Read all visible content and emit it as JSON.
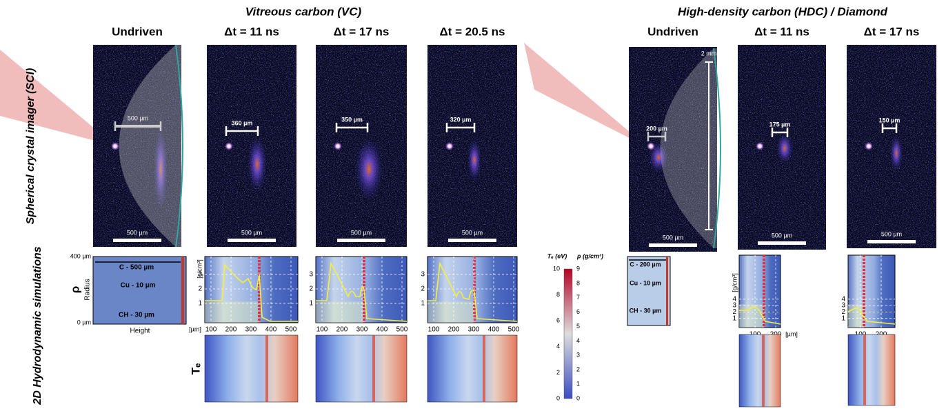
{
  "groups": [
    "Vitreous carbon (VC)",
    "High-density carbon (HDC) / Diamond"
  ],
  "columns": [
    "Undriven",
    "Δt = 11 ns",
    "Δt = 17 ns",
    "Δt = 20.5 ns",
    "Undriven",
    "Δt = 11 ns",
    "Δt = 17 ns"
  ],
  "rows": [
    "Spherical crystal imager (SCI)",
    "2D Hydrodynamic simulations"
  ],
  "sci": {
    "spans": [
      "500 µm",
      "360 µm",
      "350 µm",
      "320 µm",
      "200 µm",
      "175 µm",
      "150 µm"
    ],
    "scale_bars": [
      "500 µm",
      "500 µm",
      "500 µm",
      "500 µm",
      "500 µm",
      "500 µm",
      "500 µm"
    ],
    "height": "2 mm"
  },
  "targets": [
    {
      "radius_ticks": [
        "400 µm",
        "0 µm"
      ],
      "radius_label": "Radius",
      "height_label": "Height",
      "quantity": "ρ",
      "layers": [
        "C - 500 µm",
        "Cu - 10 µm",
        "CH - 30 µm"
      ]
    },
    {
      "layers": [
        "C - 200 µm",
        "Cu - 10 µm",
        "CH - 30 µm"
      ]
    }
  ],
  "lineouts": {
    "density_unit": "[g/cm³]",
    "x_unit": "[µm]",
    "vc_yticks": [
      1,
      2,
      3
    ],
    "vc_xticks": [
      100,
      200,
      300,
      400,
      500
    ],
    "hdc_yticks": [
      1,
      2,
      3,
      4
    ],
    "hdc_xticks": [
      100,
      200
    ]
  },
  "te_label": "Tₑ",
  "colorbar": {
    "te_title": "Tₑ (eV)",
    "rho_title": "ρ (g/cm³)",
    "te_ticks": [
      0,
      2,
      4,
      6,
      8,
      10
    ],
    "rho_ticks": [
      0,
      1,
      2,
      3,
      4,
      5,
      6,
      7,
      8,
      9
    ]
  }
}
